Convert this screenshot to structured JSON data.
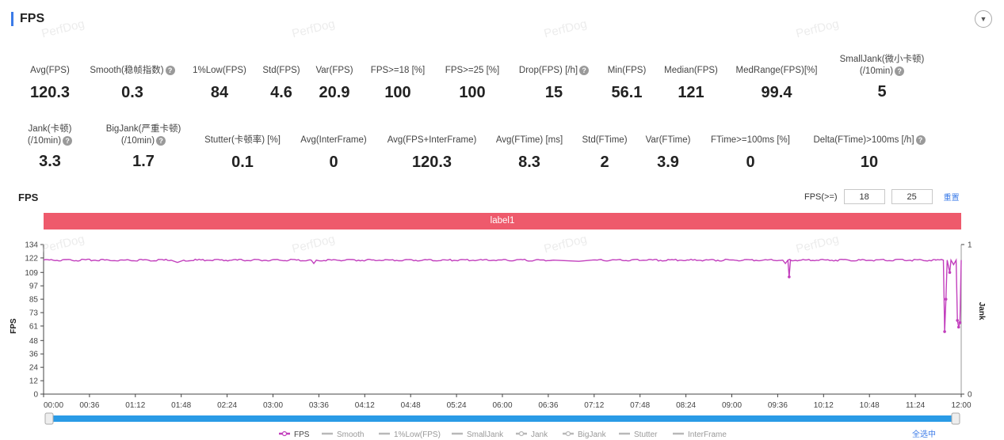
{
  "header": {
    "title": "FPS",
    "collapse_icon": "chevron-down-icon"
  },
  "watermark": "PerfDog",
  "stats_row1": [
    {
      "label": "Avg(FPS)",
      "value": "120.3",
      "help": false
    },
    {
      "label": "Smooth(稳帧指数)",
      "value": "0.3",
      "help": true
    },
    {
      "label": "1%Low(FPS)",
      "value": "84",
      "help": false
    },
    {
      "label": "Std(FPS)",
      "value": "4.6",
      "help": false
    },
    {
      "label": "Var(FPS)",
      "value": "20.9",
      "help": false
    },
    {
      "label": "FPS>=18 [%]",
      "value": "100",
      "help": false
    },
    {
      "label": "FPS>=25 [%]",
      "value": "100",
      "help": false
    },
    {
      "label": "Drop(FPS) [/h]",
      "value": "15",
      "help": true
    },
    {
      "label": "Min(FPS)",
      "value": "56.1",
      "help": false
    },
    {
      "label": "Median(FPS)",
      "value": "121",
      "help": false
    },
    {
      "label": "MedRange(FPS)[%]",
      "value": "99.4",
      "help": false
    },
    {
      "label": "SmallJank(微小卡顿)",
      "label2": "(/10min)",
      "value": "5",
      "help": true
    }
  ],
  "stats_row2": [
    {
      "label": "Jank(卡顿)",
      "label2": "(/10min)",
      "value": "3.3",
      "help": true
    },
    {
      "label": "BigJank(严重卡顿)",
      "label2": "(/10min)",
      "value": "1.7",
      "help": true
    },
    {
      "label": "Stutter(卡顿率) [%]",
      "value": "0.1",
      "help": false
    },
    {
      "label": "Avg(InterFrame)",
      "value": "0",
      "help": false
    },
    {
      "label": "Avg(FPS+InterFrame)",
      "value": "120.3",
      "help": false
    },
    {
      "label": "Avg(FTime) [ms]",
      "value": "8.3",
      "help": false
    },
    {
      "label": "Std(FTime)",
      "value": "2",
      "help": false
    },
    {
      "label": "Var(FTime)",
      "value": "3.9",
      "help": false
    },
    {
      "label": "FTime>=100ms [%]",
      "value": "0",
      "help": false
    },
    {
      "label": "Delta(FTime)>100ms [/h]",
      "value": "10",
      "help": true
    }
  ],
  "chart": {
    "title": "FPS",
    "filter_label": "FPS(>=)",
    "filter_values": [
      "18",
      "25"
    ],
    "reset_label": "重置",
    "band_label": "label1",
    "select_all_label": "全选中",
    "legend": [
      {
        "name": "FPS",
        "color": "#c23fbd",
        "active": true
      },
      {
        "name": "Smooth",
        "color": "#b8b8b8",
        "active": false
      },
      {
        "name": "1%Low(FPS)",
        "color": "#b8b8b8",
        "active": false
      },
      {
        "name": "SmallJank",
        "color": "#b8b8b8",
        "active": false
      },
      {
        "name": "Jank",
        "color": "#b8b8b8",
        "active": false
      },
      {
        "name": "BigJank",
        "color": "#b8b8b8",
        "active": false
      },
      {
        "name": "Stutter",
        "color": "#b8b8b8",
        "active": false
      },
      {
        "name": "InterFrame",
        "color": "#b8b8b8",
        "active": false
      }
    ]
  },
  "chart_data": {
    "type": "line",
    "ylabel": "FPS",
    "y2label": "Jank",
    "yticks": [
      0,
      12,
      24,
      36,
      48,
      61,
      73,
      85,
      97,
      109,
      122,
      134
    ],
    "ylim": [
      0,
      134
    ],
    "y2ticks": [
      0,
      1
    ],
    "xticks": [
      "00:00",
      "00:36",
      "01:12",
      "01:48",
      "02:24",
      "03:00",
      "03:36",
      "04:12",
      "04:48",
      "05:24",
      "06:00",
      "06:36",
      "07:12",
      "07:48",
      "08:24",
      "09:00",
      "09:36",
      "10:12",
      "10:48",
      "11:24",
      "12:00"
    ],
    "xlim_seconds": [
      0,
      720
    ],
    "series": [
      {
        "name": "FPS",
        "color": "#c23fbd",
        "baseline": 120,
        "points": [
          [
            0,
            120
          ],
          [
            100,
            120
          ],
          [
            105,
            118
          ],
          [
            110,
            120
          ],
          [
            210,
            120
          ],
          [
            212,
            117
          ],
          [
            214,
            120
          ],
          [
            400,
            120
          ],
          [
            420,
            119
          ],
          [
            430,
            120
          ],
          [
            580,
            120
          ],
          [
            582,
            117
          ],
          [
            584,
            120
          ],
          [
            700,
            120
          ],
          [
            706,
            120
          ],
          [
            707,
            56
          ],
          [
            708,
            85
          ],
          [
            709,
            120
          ],
          [
            711,
            109
          ],
          [
            712,
            120
          ],
          [
            714,
            116
          ],
          [
            716,
            120
          ],
          [
            717,
            66
          ],
          [
            718,
            60
          ],
          [
            719,
            64
          ],
          [
            720,
            120
          ]
        ]
      }
    ],
    "grid": false,
    "legend_position": "bottom"
  }
}
